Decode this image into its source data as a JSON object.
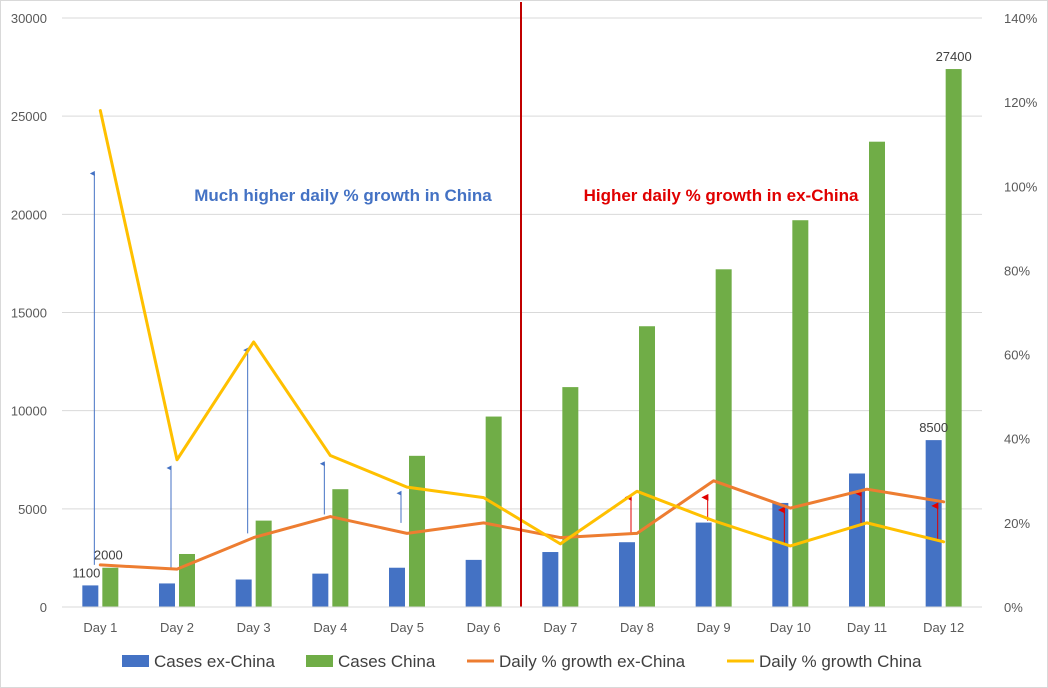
{
  "chart_data": {
    "type": "bar",
    "title": "",
    "categories": [
      "Day 1",
      "Day 2",
      "Day 3",
      "Day 4",
      "Day 5",
      "Day 6",
      "Day 7",
      "Day 8",
      "Day 9",
      "Day 10",
      "Day 11",
      "Day 12"
    ],
    "series": [
      {
        "name": "Cases ex-China",
        "kind": "bar",
        "axis": "left",
        "color": "#4472C4",
        "values": [
          1100,
          1200,
          1400,
          1700,
          2000,
          2400,
          2800,
          3300,
          4300,
          5300,
          6800,
          8500
        ]
      },
      {
        "name": "Cases China",
        "kind": "bar",
        "axis": "left",
        "color": "#70AD47",
        "values": [
          2000,
          2700,
          4400,
          6000,
          7700,
          9700,
          11200,
          14300,
          17200,
          19700,
          23700,
          27400
        ]
      },
      {
        "name": "Daily % growth ex-China",
        "kind": "line",
        "axis": "right",
        "color": "#ED7D31",
        "values": [
          0.1,
          0.09,
          0.165,
          0.215,
          0.175,
          0.2,
          0.165,
          0.175,
          0.3,
          0.235,
          0.28,
          0.25
        ]
      },
      {
        "name": "Daily % growth China",
        "kind": "line",
        "axis": "right",
        "color": "#FFC000",
        "values": [
          1.18,
          0.35,
          0.63,
          0.36,
          0.285,
          0.26,
          0.15,
          0.275,
          0.205,
          0.145,
          0.2,
          0.155
        ]
      }
    ],
    "y_left": {
      "min": 0,
      "max": 30000,
      "ticks": [
        "0",
        "5000",
        "10000",
        "15000",
        "20000",
        "25000",
        "30000"
      ]
    },
    "y_right": {
      "min": 0,
      "max": 1.4,
      "ticks": [
        "0%",
        "20%",
        "40%",
        "60%",
        "80%",
        "100%",
        "120%",
        "140%"
      ]
    },
    "grid": true,
    "legend": "bottom",
    "data_labels": [
      {
        "series": 0,
        "index": 0,
        "text": "1100"
      },
      {
        "series": 1,
        "index": 0,
        "text": "2000"
      },
      {
        "series": 0,
        "index": 11,
        "text": "8500"
      },
      {
        "series": 1,
        "index": 11,
        "text": "27400"
      }
    ],
    "divider_between": [
      "Day 6",
      "Day 7"
    ],
    "annotations": [
      {
        "text": "Much higher daily % growth in China",
        "color": "#4472C4"
      },
      {
        "text": "Higher daily % growth in ex-China",
        "color": "#E00000"
      }
    ],
    "growth_arrows": [
      {
        "index": 0,
        "from": 0.1,
        "to": 1.04,
        "color": "#4472C4"
      },
      {
        "index": 1,
        "from": 0.09,
        "to": 0.34,
        "color": "#4472C4"
      },
      {
        "index": 2,
        "from": 0.175,
        "to": 0.62,
        "color": "#4472C4"
      },
      {
        "index": 3,
        "from": 0.22,
        "to": 0.35,
        "color": "#4472C4"
      },
      {
        "index": 4,
        "from": 0.2,
        "to": 0.28,
        "color": "#4472C4"
      },
      {
        "index": 7,
        "from": 0.175,
        "to": 0.27,
        "color": "#E00000"
      },
      {
        "index": 8,
        "from": 0.205,
        "to": 0.27,
        "color": "#E00000"
      },
      {
        "index": 9,
        "from": 0.15,
        "to": 0.24,
        "color": "#E00000"
      },
      {
        "index": 10,
        "from": 0.2,
        "to": 0.28,
        "color": "#E00000"
      },
      {
        "index": 11,
        "from": 0.16,
        "to": 0.25,
        "color": "#E00000"
      }
    ]
  }
}
